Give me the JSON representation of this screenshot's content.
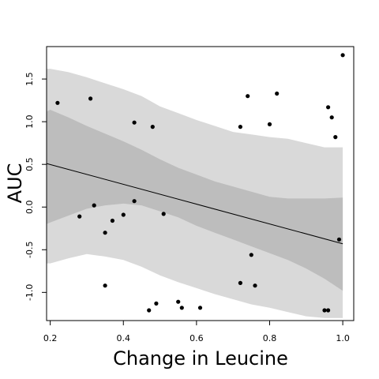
{
  "chart_data": {
    "type": "scatter",
    "xlabel": "Change in Leucine",
    "ylabel": "AUC",
    "xlim": [
      0.19,
      1.03
    ],
    "ylim": [
      -1.33,
      1.88
    ],
    "x_ticks": [
      0.2,
      0.4,
      0.6,
      0.8,
      1.0
    ],
    "x_tick_labels": [
      "0.2",
      "0.4",
      "0.6",
      "0.8",
      "1.0"
    ],
    "y_ticks": [
      -1.0,
      -0.5,
      0.0,
      0.5,
      1.0,
      1.5
    ],
    "y_tick_labels": [
      "-1.0",
      "-0.5",
      "0.0",
      "0.5",
      "1.0",
      "1.5"
    ],
    "grid": false,
    "colors": {
      "outer_band": "#d9d9d9",
      "inner_band": "#bdbdbd",
      "points": "#000000",
      "line": "#000000"
    },
    "regression_line": {
      "x": [
        0.19,
        1.0
      ],
      "y": [
        0.51,
        -0.43
      ]
    },
    "outer_band": {
      "x": [
        0.19,
        0.2,
        0.25,
        0.3,
        0.35,
        0.4,
        0.45,
        0.5,
        0.55,
        0.6,
        0.65,
        0.7,
        0.75,
        0.8,
        0.85,
        0.9,
        0.95,
        1.0
      ],
      "upper": [
        1.62,
        1.62,
        1.58,
        1.52,
        1.45,
        1.38,
        1.3,
        1.18,
        1.1,
        1.02,
        0.95,
        0.88,
        0.85,
        0.82,
        0.8,
        0.75,
        0.7,
        0.7
      ],
      "lower": [
        -0.66,
        -0.66,
        -0.6,
        -0.55,
        -0.58,
        -0.62,
        -0.7,
        -0.8,
        -0.88,
        -0.95,
        -1.02,
        -1.08,
        -1.14,
        -1.18,
        -1.23,
        -1.28,
        -1.3,
        -1.3
      ]
    },
    "inner_band": {
      "x": [
        0.19,
        0.2,
        0.25,
        0.3,
        0.35,
        0.4,
        0.45,
        0.5,
        0.55,
        0.6,
        0.65,
        0.7,
        0.75,
        0.8,
        0.85,
        0.9,
        0.95,
        1.0
      ],
      "upper": [
        1.12,
        1.14,
        1.05,
        0.95,
        0.86,
        0.77,
        0.67,
        0.56,
        0.46,
        0.38,
        0.3,
        0.24,
        0.18,
        0.12,
        0.1,
        0.1,
        0.1,
        0.11
      ],
      "lower": [
        -0.2,
        -0.18,
        -0.1,
        -0.02,
        0.02,
        0.04,
        0.02,
        -0.05,
        -0.12,
        -0.22,
        -0.3,
        -0.38,
        -0.46,
        -0.54,
        -0.62,
        -0.72,
        -0.84,
        -0.98
      ]
    },
    "points": [
      {
        "x": 0.22,
        "y": 1.22
      },
      {
        "x": 0.31,
        "y": 1.27
      },
      {
        "x": 0.43,
        "y": 0.99
      },
      {
        "x": 0.48,
        "y": 0.94
      },
      {
        "x": 0.72,
        "y": 0.94
      },
      {
        "x": 0.74,
        "y": 1.3
      },
      {
        "x": 0.8,
        "y": 0.97
      },
      {
        "x": 0.82,
        "y": 1.33
      },
      {
        "x": 0.96,
        "y": 1.17
      },
      {
        "x": 0.97,
        "y": 1.05
      },
      {
        "x": 0.98,
        "y": 0.82
      },
      {
        "x": 1.0,
        "y": 1.78
      },
      {
        "x": 0.28,
        "y": -0.11
      },
      {
        "x": 0.32,
        "y": 0.02
      },
      {
        "x": 0.35,
        "y": -0.3
      },
      {
        "x": 0.37,
        "y": -0.16
      },
      {
        "x": 0.4,
        "y": -0.09
      },
      {
        "x": 0.43,
        "y": 0.07
      },
      {
        "x": 0.51,
        "y": -0.08
      },
      {
        "x": 0.99,
        "y": -0.38
      },
      {
        "x": 0.75,
        "y": -0.56
      },
      {
        "x": 0.35,
        "y": -0.92
      },
      {
        "x": 0.72,
        "y": -0.89
      },
      {
        "x": 0.76,
        "y": -0.92
      },
      {
        "x": 0.47,
        "y": -1.21
      },
      {
        "x": 0.49,
        "y": -1.13
      },
      {
        "x": 0.55,
        "y": -1.11
      },
      {
        "x": 0.56,
        "y": -1.18
      },
      {
        "x": 0.61,
        "y": -1.18
      },
      {
        "x": 0.95,
        "y": -1.21
      },
      {
        "x": 0.96,
        "y": -1.21
      }
    ]
  }
}
